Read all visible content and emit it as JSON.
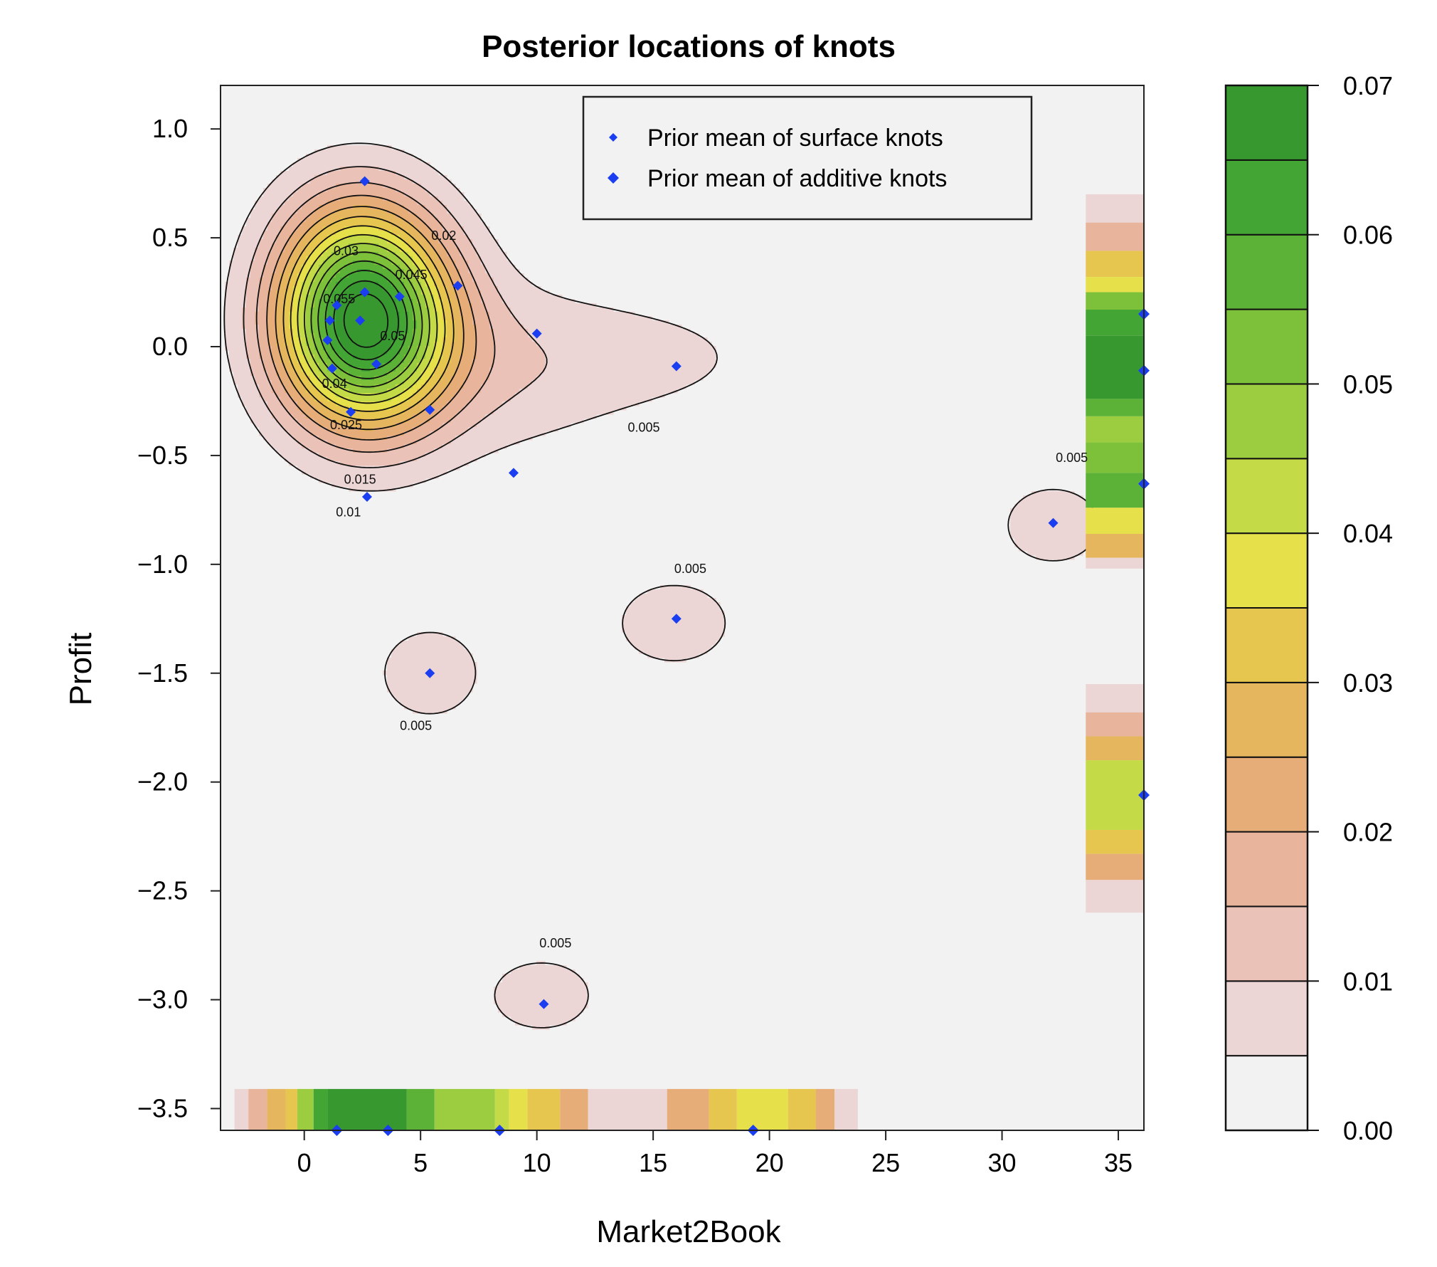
{
  "chart_data": {
    "type": "heatmap",
    "title": "Posterior locations of knots",
    "xlabel": "Market2Book",
    "ylabel": "Profit",
    "xlim": [
      -3.6,
      36.1
    ],
    "ylim": [
      -3.6,
      1.2
    ],
    "xticks": [
      0,
      5,
      10,
      15,
      20,
      25,
      30,
      35
    ],
    "yticks": [
      1.0,
      0.5,
      0.0,
      -0.5,
      -1.0,
      -1.5,
      -2.0,
      -2.5,
      -3.0,
      -3.5
    ],
    "ytick_labels": [
      "1.0",
      "0.5",
      "0.0",
      "−0.5",
      "−1.0",
      "−1.5",
      "−2.0",
      "−2.5",
      "−3.0",
      "−3.5"
    ],
    "legend": {
      "position": "top-right",
      "entries": [
        "Prior mean of surface knots",
        "Prior mean of additive knots"
      ],
      "marker_color": "#1a3ef0"
    },
    "colorbar": {
      "levels": [
        0.0,
        0.005,
        0.01,
        0.015,
        0.02,
        0.025,
        0.03,
        0.035,
        0.04,
        0.045,
        0.05,
        0.055,
        0.06,
        0.065,
        0.07
      ],
      "colors": [
        "#f2f2f2",
        "#ecd6d5",
        "#eac2b8",
        "#e8b49c",
        "#e6ad79",
        "#e6b65e",
        "#e6c64f",
        "#e6e04a",
        "#c4db47",
        "#9ccd41",
        "#7dc13b",
        "#5cb237",
        "#42a534",
        "#37982f"
      ],
      "tick_values": [
        0.0,
        0.01,
        0.02,
        0.03,
        0.04,
        0.05,
        0.06,
        0.07
      ],
      "tick_labels": [
        "0.00",
        "0.01",
        "0.02",
        "0.03",
        "0.04",
        "0.05",
        "0.06",
        "0.07"
      ]
    },
    "contour_labels": [
      {
        "text": "0.02",
        "x": 6.0,
        "y": 0.49
      },
      {
        "text": "0.03",
        "x": 1.8,
        "y": 0.42
      },
      {
        "text": "0.045",
        "x": 4.6,
        "y": 0.31
      },
      {
        "text": "0.055",
        "x": 1.5,
        "y": 0.2
      },
      {
        "text": "0.05",
        "x": 3.8,
        "y": 0.03
      },
      {
        "text": "0.04",
        "x": 1.3,
        "y": -0.19
      },
      {
        "text": "0.025",
        "x": 1.8,
        "y": -0.38
      },
      {
        "text": "0.015",
        "x": 2.4,
        "y": -0.63
      },
      {
        "text": "0.01",
        "x": 1.9,
        "y": -0.78
      },
      {
        "text": "0.005",
        "x": 14.6,
        "y": -0.39
      },
      {
        "text": "0.005",
        "x": 33.0,
        "y": -0.53
      },
      {
        "text": "0.005",
        "x": 16.6,
        "y": -1.04
      },
      {
        "text": "0.005",
        "x": 4.8,
        "y": -1.76
      },
      {
        "text": "0.005",
        "x": 10.8,
        "y": -2.76
      }
    ],
    "surface_knots": [
      {
        "x": 2.6,
        "y": 0.76
      },
      {
        "x": 6.6,
        "y": 0.28
      },
      {
        "x": 4.1,
        "y": 0.23
      },
      {
        "x": 2.6,
        "y": 0.25
      },
      {
        "x": 1.4,
        "y": 0.19
      },
      {
        "x": 1.1,
        "y": 0.12
      },
      {
        "x": 2.4,
        "y": 0.12
      },
      {
        "x": 1.0,
        "y": 0.03
      },
      {
        "x": 10.0,
        "y": 0.06
      },
      {
        "x": 3.1,
        "y": -0.08
      },
      {
        "x": 1.2,
        "y": -0.1
      },
      {
        "x": 5.4,
        "y": -0.29
      },
      {
        "x": 2.0,
        "y": -0.3
      },
      {
        "x": 16.0,
        "y": -0.09
      },
      {
        "x": 9.0,
        "y": -0.58
      },
      {
        "x": 2.7,
        "y": -0.69
      },
      {
        "x": 32.2,
        "y": -0.81
      },
      {
        "x": 16.0,
        "y": -1.25
      },
      {
        "x": 5.4,
        "y": -1.5
      },
      {
        "x": 10.3,
        "y": -3.02
      }
    ],
    "additive_knots_x": [
      1.4,
      3.6,
      8.4,
      19.3
    ],
    "additive_knots_y": [
      0.15,
      -0.11,
      -0.63,
      -2.06
    ],
    "additive_strip_x": [
      {
        "from": -3.0,
        "to": -2.4,
        "value": 0.008
      },
      {
        "from": -2.4,
        "to": -1.6,
        "value": 0.017
      },
      {
        "from": -1.6,
        "to": -0.8,
        "value": 0.025
      },
      {
        "from": -0.8,
        "to": -0.3,
        "value": 0.033
      },
      {
        "from": -0.3,
        "to": 0.4,
        "value": 0.045
      },
      {
        "from": 0.4,
        "to": 1.0,
        "value": 0.06
      },
      {
        "from": 1.0,
        "to": 4.4,
        "value": 0.068
      },
      {
        "from": 4.4,
        "to": 5.6,
        "value": 0.058
      },
      {
        "from": 5.6,
        "to": 8.2,
        "value": 0.049
      },
      {
        "from": 8.2,
        "to": 8.8,
        "value": 0.043
      },
      {
        "from": 8.8,
        "to": 9.6,
        "value": 0.037
      },
      {
        "from": 9.6,
        "to": 11.0,
        "value": 0.031
      },
      {
        "from": 11.0,
        "to": 12.2,
        "value": 0.02
      },
      {
        "from": 12.2,
        "to": 15.6,
        "value": 0.008
      },
      {
        "from": 15.6,
        "to": 17.4,
        "value": 0.02
      },
      {
        "from": 17.4,
        "to": 18.6,
        "value": 0.03
      },
      {
        "from": 18.6,
        "to": 20.8,
        "value": 0.038
      },
      {
        "from": 20.8,
        "to": 22.0,
        "value": 0.031
      },
      {
        "from": 22.0,
        "to": 22.8,
        "value": 0.02
      },
      {
        "from": 22.8,
        "to": 23.8,
        "value": 0.008
      }
    ],
    "additive_strip_y": [
      {
        "from": 0.7,
        "to": 0.57,
        "value": 0.007
      },
      {
        "from": 0.57,
        "to": 0.44,
        "value": 0.018
      },
      {
        "from": 0.44,
        "to": 0.32,
        "value": 0.03
      },
      {
        "from": 0.32,
        "to": 0.25,
        "value": 0.038
      },
      {
        "from": 0.25,
        "to": 0.17,
        "value": 0.05
      },
      {
        "from": 0.17,
        "to": 0.05,
        "value": 0.06
      },
      {
        "from": 0.05,
        "to": -0.24,
        "value": 0.069
      },
      {
        "from": -0.24,
        "to": -0.32,
        "value": 0.058
      },
      {
        "from": -0.32,
        "to": -0.44,
        "value": 0.045
      },
      {
        "from": -0.44,
        "to": -0.58,
        "value": 0.05
      },
      {
        "from": -0.58,
        "to": -0.74,
        "value": 0.055
      },
      {
        "from": -0.74,
        "to": -0.86,
        "value": 0.037
      },
      {
        "from": -0.86,
        "to": -0.97,
        "value": 0.025
      },
      {
        "from": -0.97,
        "to": -1.02,
        "value": 0.008
      },
      {
        "from": -1.55,
        "to": -1.68,
        "value": 0.008
      },
      {
        "from": -1.68,
        "to": -1.79,
        "value": 0.018
      },
      {
        "from": -1.79,
        "to": -1.9,
        "value": 0.028
      },
      {
        "from": -1.9,
        "to": -2.22,
        "value": 0.04
      },
      {
        "from": -2.22,
        "to": -2.33,
        "value": 0.031
      },
      {
        "from": -2.33,
        "to": -2.45,
        "value": 0.02
      },
      {
        "from": -2.45,
        "to": -2.6,
        "value": 0.008
      }
    ],
    "density_blobs": [
      {
        "x": 2.6,
        "y": 0.11,
        "peak": 0.072,
        "sx": 2.6,
        "sy": 0.33
      },
      {
        "x": 8.5,
        "y": -0.12,
        "peak": 0.006,
        "sx": 3.4,
        "sy": 0.32
      },
      {
        "x": 14.5,
        "y": -0.05,
        "peak": 0.006,
        "sx": 5.0,
        "sy": 0.22
      },
      {
        "x": 2.0,
        "y": 0.55,
        "peak": 0.006,
        "sx": 2.5,
        "sy": 0.25
      },
      {
        "x": 15.9,
        "y": -1.27,
        "peak": 0.0068,
        "sx": 2.8,
        "sy": 0.22
      },
      {
        "x": 5.4,
        "y": -1.5,
        "peak": 0.0066,
        "sx": 2.6,
        "sy": 0.25
      },
      {
        "x": 10.2,
        "y": -2.98,
        "peak": 0.0066,
        "sx": 2.7,
        "sy": 0.2
      },
      {
        "x": 32.2,
        "y": -0.82,
        "peak": 0.0066,
        "sx": 2.6,
        "sy": 0.22
      }
    ]
  }
}
